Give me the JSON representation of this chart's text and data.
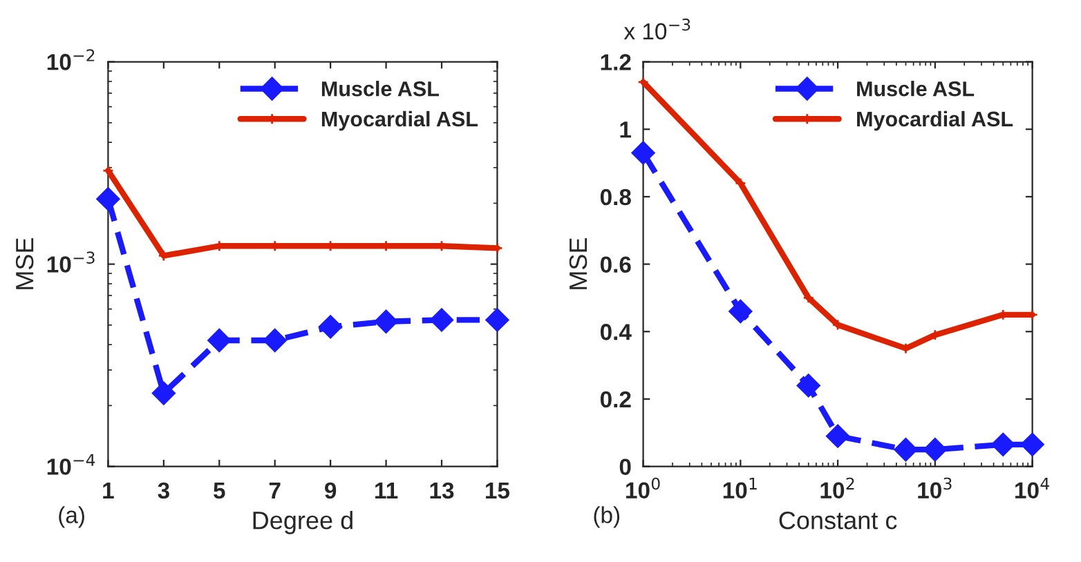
{
  "chart_data": [
    {
      "type": "line",
      "xlabel": "Degree d",
      "ylabel": "MSE",
      "x": [
        1,
        3,
        5,
        7,
        9,
        11,
        13,
        15
      ],
      "xlim": [
        1,
        15
      ],
      "xticks": [
        1,
        3,
        5,
        7,
        9,
        11,
        13,
        15
      ],
      "log": "y",
      "ylim": [
        0.0001,
        0.01
      ],
      "yticks": [
        {
          "value": 0.0001,
          "label": "10$^{−4}$"
        },
        {
          "value": 0.001,
          "label": "10$^{−3}$"
        },
        {
          "value": 0.01,
          "label": "10$^{−2}$"
        }
      ],
      "grid": false,
      "legend": "top right",
      "annotations": [
        "(a)"
      ],
      "series": [
        {
          "name": "Muscle ASL",
          "color": "#1a1aff",
          "marker": "diamond",
          "line_style": "dashed",
          "values": [
            0.0021,
            0.00023,
            0.00042,
            0.00042,
            0.00049,
            0.00052,
            0.00053,
            0.00053
          ]
        },
        {
          "name": "Myocardial ASL",
          "color": "#dd2200",
          "marker": "cross",
          "line_style": "solid",
          "values": [
            0.0029,
            0.0011,
            0.00123,
            0.00123,
            0.00123,
            0.00123,
            0.00123,
            0.0012
          ]
        }
      ]
    },
    {
      "type": "line",
      "xlabel": "Constant c",
      "ylabel": "MSE",
      "x": [
        1,
        10,
        50,
        100,
        500,
        1000,
        5000,
        10000
      ],
      "log": "x",
      "xlim": [
        1,
        10000
      ],
      "xticks": [
        {
          "value": 1,
          "label": "10$^{0}$"
        },
        {
          "value": 10,
          "label": "10$^{1}$"
        },
        {
          "value": 100,
          "label": "10$^{2}$"
        },
        {
          "value": 1000,
          "label": "10$^{3}$"
        },
        {
          "value": 10000,
          "label": "10$^{4}$"
        }
      ],
      "ylim": [
        0,
        1.2
      ],
      "yticks": [
        0,
        0.2,
        0.4,
        0.6,
        0.8,
        1,
        1.2
      ],
      "grid": false,
      "legend": "top right",
      "annotations": [
        "x 10$^{−3}$",
        "(b)"
      ],
      "series": [
        {
          "name": "Muscle ASL",
          "color": "#1a1aff",
          "marker": "diamond",
          "line_style": "dashed",
          "values": [
            0.93,
            0.46,
            0.24,
            0.09,
            0.05,
            0.05,
            0.065,
            0.065
          ]
        },
        {
          "name": "Myocardial ASL",
          "color": "#dd2200",
          "marker": "cross",
          "line_style": "solid",
          "values": [
            1.14,
            0.84,
            0.5,
            0.42,
            0.35,
            0.39,
            0.45,
            0.45
          ]
        }
      ]
    }
  ]
}
